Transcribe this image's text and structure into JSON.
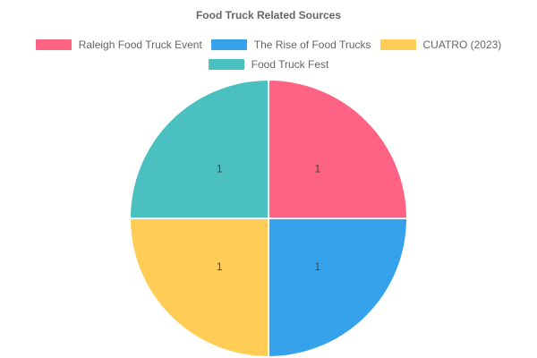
{
  "chart_data": {
    "type": "pie",
    "title": "Food Truck Related Sources",
    "legend_position": "top",
    "categories": [
      "Raleigh Food Truck Event",
      "The Rise of Food Trucks",
      "CUATRO (2023)",
      "Food Truck Fest"
    ],
    "values": [
      1,
      1,
      1,
      1
    ],
    "data_labels": [
      "1",
      "1",
      "1",
      "1"
    ],
    "colors": [
      "#ff6384",
      "#36a2eb",
      "#ffcd56",
      "#4bc0c0"
    ],
    "slice_border_color": "#ffffff"
  }
}
